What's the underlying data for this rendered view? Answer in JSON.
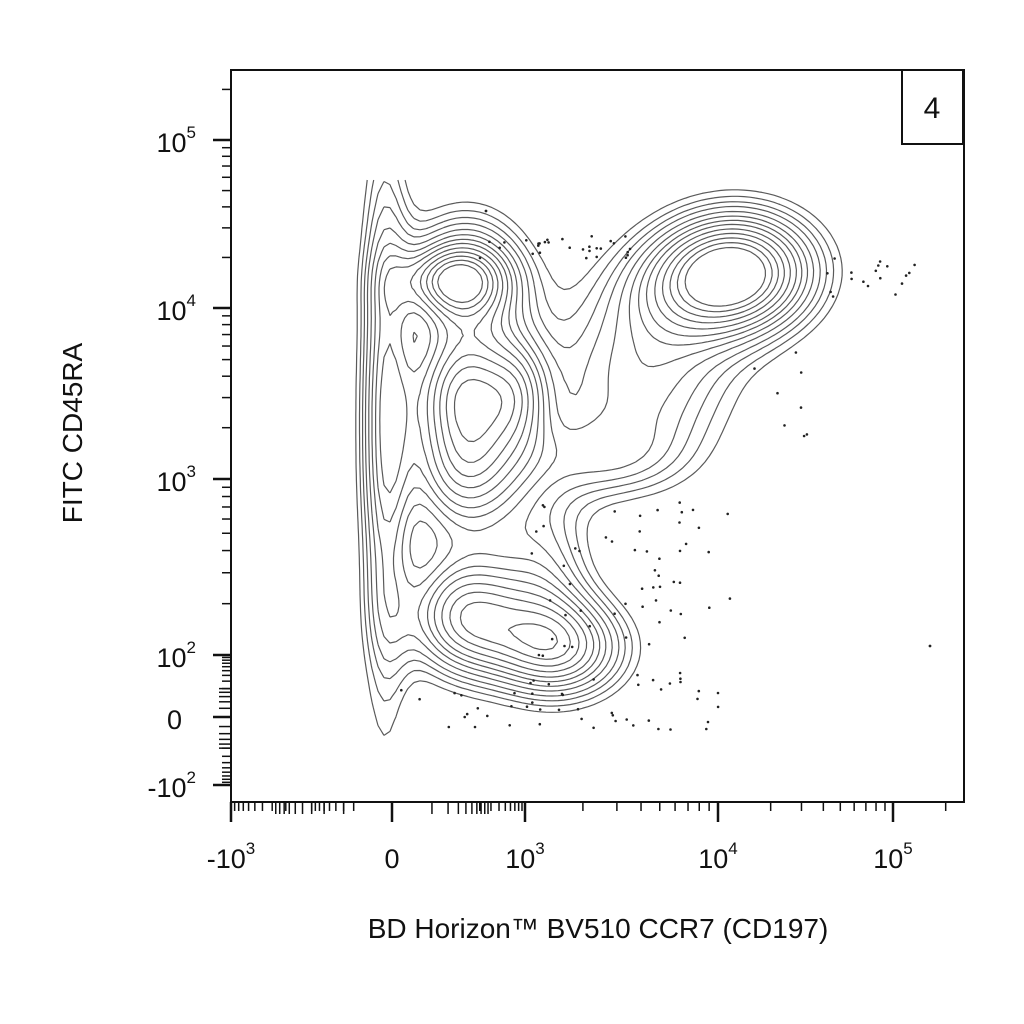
{
  "chart_data": {
    "type": "contour",
    "panel_label": "4",
    "xlabel": "BD Horizon™ BV510 CCR7 (CD197)",
    "ylabel": "FITC CD45RA",
    "x_scale": "biexponential",
    "y_scale": "biexponential",
    "x_ticks": [
      {
        "value": -1000,
        "base": "-10",
        "exp": "3"
      },
      {
        "value": 0,
        "base": "0",
        "exp": ""
      },
      {
        "value": 1000,
        "base": "10",
        "exp": "3"
      },
      {
        "value": 10000,
        "base": "10",
        "exp": "4"
      },
      {
        "value": 100000,
        "base": "10",
        "exp": "5"
      }
    ],
    "y_ticks": [
      {
        "value": 100000,
        "base": "10",
        "exp": "5"
      },
      {
        "value": 10000,
        "base": "10",
        "exp": "4"
      },
      {
        "value": 1000,
        "base": "10",
        "exp": "3"
      },
      {
        "value": 100,
        "base": "10",
        "exp": "2"
      },
      {
        "value": 0,
        "base": "0",
        "exp": ""
      },
      {
        "value": -100,
        "base": "-10",
        "exp": "2"
      }
    ],
    "populations": [
      {
        "x": 120,
        "y": 14000,
        "density": 0.75
      },
      {
        "x": 120,
        "y": 3500,
        "density": 0.7
      },
      {
        "x": 120,
        "y": 1200,
        "density": 0.8
      },
      {
        "x": 120,
        "y": 170,
        "density": 0.8
      },
      {
        "x": 1500,
        "y": 110,
        "density": 0.75
      },
      {
        "x": 13000,
        "y": 17000,
        "density": 1.0
      }
    ],
    "grid": false
  }
}
